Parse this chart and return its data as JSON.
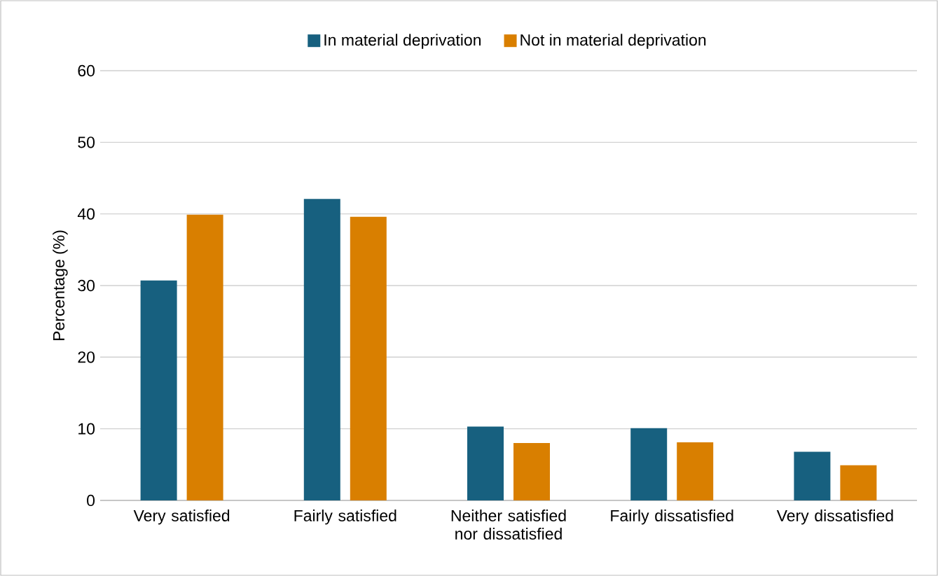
{
  "chart_data": {
    "type": "bar",
    "ylabel": "Percentage (%)",
    "categories": [
      "Very satisfied",
      "Fairly satisfied",
      "Neither satisfied nor dissatisfied",
      "Fairly dissatisfied",
      "Very dissatisfied"
    ],
    "series": [
      {
        "name": "In material deprivation",
        "color": "#17607f",
        "values": [
          30.7,
          42.1,
          10.3,
          10.1,
          6.8
        ]
      },
      {
        "name": "Not in material deprivation",
        "color": "#d97f00",
        "values": [
          39.9,
          39.6,
          8.0,
          8.1,
          4.9
        ]
      }
    ],
    "ylim": [
      0,
      60
    ],
    "yticks": [
      0,
      10,
      20,
      30,
      40,
      50,
      60
    ],
    "grid": "y",
    "legend": "top"
  }
}
